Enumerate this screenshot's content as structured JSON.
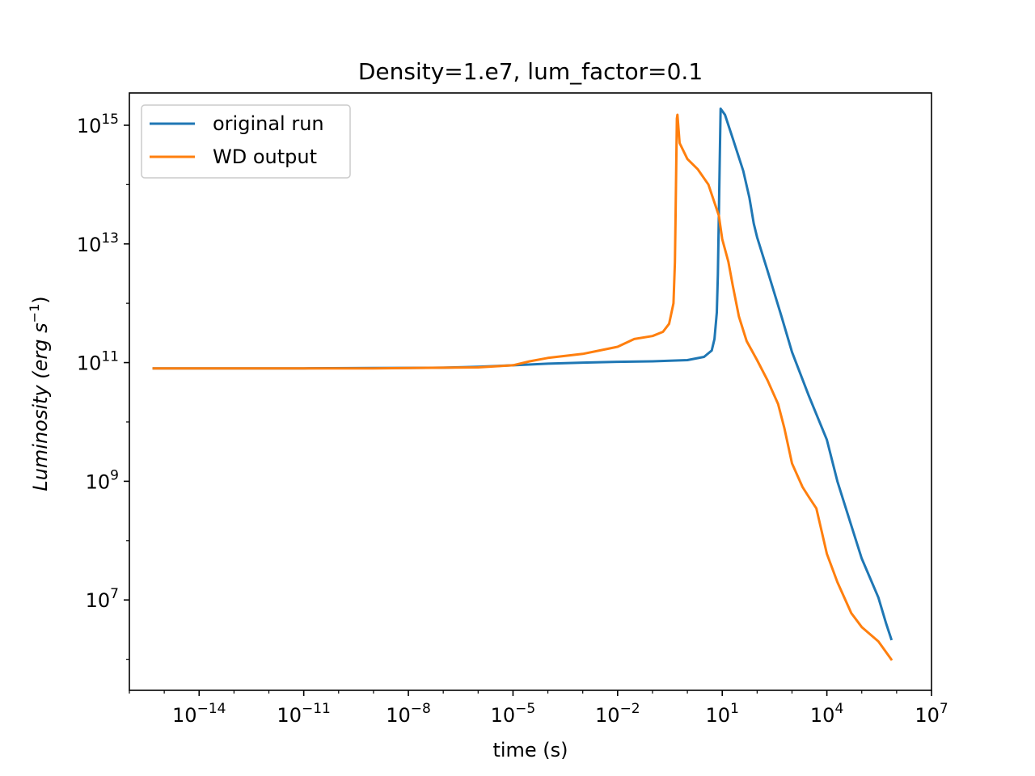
{
  "chart_data": {
    "type": "line",
    "title": "Density=1.e7, lum_factor=0.1",
    "xlabel": "time (s)",
    "ylabel": "Luminosity (erg s^-1)",
    "ylabel_parts": {
      "prefix": "Luminosity (",
      "unit_erg": "erg",
      "unit_s": "s",
      "exp": "−1",
      "suffix": ")"
    },
    "xscale": "log",
    "yscale": "log",
    "xlim": [
      1e-16,
      10000000.0
    ],
    "ylim": [
      300000.0,
      3500000000000000.0
    ],
    "x_tick_values": [
      1e-14,
      1e-11,
      1e-08,
      1e-05,
      0.01,
      10.0,
      10000.0,
      10000000.0
    ],
    "x_tick_labels": [
      {
        "base": "10",
        "exp": "−14"
      },
      {
        "base": "10",
        "exp": "−11"
      },
      {
        "base": "10",
        "exp": "−8"
      },
      {
        "base": "10",
        "exp": "−5"
      },
      {
        "base": "10",
        "exp": "−2"
      },
      {
        "base": "10",
        "exp": "1"
      },
      {
        "base": "10",
        "exp": "4"
      },
      {
        "base": "10",
        "exp": "7"
      }
    ],
    "y_tick_values": [
      10000000.0,
      1000000000.0,
      100000000000.0,
      10000000000000.0,
      1000000000000000.0
    ],
    "y_tick_labels": [
      {
        "base": "10",
        "exp": "7"
      },
      {
        "base": "10",
        "exp": "9"
      },
      {
        "base": "10",
        "exp": "11"
      },
      {
        "base": "10",
        "exp": "13"
      },
      {
        "base": "10",
        "exp": "15"
      }
    ],
    "legend": {
      "location": "upper-left"
    },
    "series": [
      {
        "name": "original run",
        "color": "#1f77b4",
        "x": [
          5e-16,
          1e-13,
          1e-11,
          1e-09,
          1e-07,
          1e-06,
          1e-05,
          0.0001,
          0.001,
          0.01,
          0.1,
          1,
          3,
          5,
          6,
          7,
          7.5,
          8,
          8.5,
          9,
          12,
          20,
          40,
          60,
          80,
          100,
          200,
          500,
          1000,
          3000,
          10000,
          20000,
          50000,
          100000,
          300000,
          500000,
          700000
        ],
        "y": [
          80000000000.0,
          80000000000.0,
          80000000000.0,
          81000000000.0,
          82000000000.0,
          85000000000.0,
          90000000000.0,
          96000000000.0,
          100000000000.0,
          103000000000.0,
          105000000000.0,
          110000000000.0,
          125000000000.0,
          160000000000.0,
          250000000000.0,
          700000000000.0,
          3000000000000.0,
          30000000000000.0,
          300000000000000.0,
          1900000000000000.0,
          1500000000000000.0,
          600000000000000.0,
          170000000000000.0,
          60000000000000.0,
          22000000000000.0,
          13000000000000.0,
          3500000000000.0,
          600000000000.0,
          150000000000.0,
          28000000000.0,
          5000000000.0,
          1000000000.0,
          180000000.0,
          50000000.0,
          11000000.0,
          4000000.0,
          2200000.0
        ]
      },
      {
        "name": "WD output",
        "color": "#ff7f0e",
        "x": [
          5e-16,
          1e-13,
          1e-11,
          1e-09,
          1e-07,
          1e-06,
          1e-05,
          3e-05,
          0.0001,
          0.001,
          0.003,
          0.01,
          0.03,
          0.1,
          0.2,
          0.3,
          0.4,
          0.44,
          0.46,
          0.48,
          0.5,
          0.52,
          0.6,
          1,
          2,
          4,
          8,
          10,
          15,
          20,
          30,
          50,
          100,
          200,
          400,
          600,
          1000,
          2000,
          3000,
          5000,
          10000,
          20000,
          50000,
          100000,
          300000,
          700000
        ],
        "y": [
          80000000000.0,
          80000000000.0,
          80000000000.0,
          80000000000.0,
          82000000000.0,
          83000000000.0,
          90000000000.0,
          105000000000.0,
          120000000000.0,
          140000000000.0,
          160000000000.0,
          185000000000.0,
          250000000000.0,
          280000000000.0,
          330000000000.0,
          450000000000.0,
          1000000000000.0,
          5000000000000.0,
          30000000000000.0,
          200000000000000.0,
          1300000000000000.0,
          1500000000000000.0,
          500000000000000.0,
          270000000000000.0,
          180000000000000.0,
          100000000000000.0,
          30000000000000.0,
          12000000000000.0,
          5000000000000.0,
          2000000000000.0,
          600000000000.0,
          230000000000.0,
          110000000000.0,
          50000000000.0,
          20000000000.0,
          8000000000.0,
          2000000000.0,
          800000000.0,
          550000000.0,
          350000000.0,
          60000000.0,
          20000000.0,
          6000000.0,
          3500000.0,
          2000000.0,
          1000000.0
        ]
      }
    ]
  }
}
